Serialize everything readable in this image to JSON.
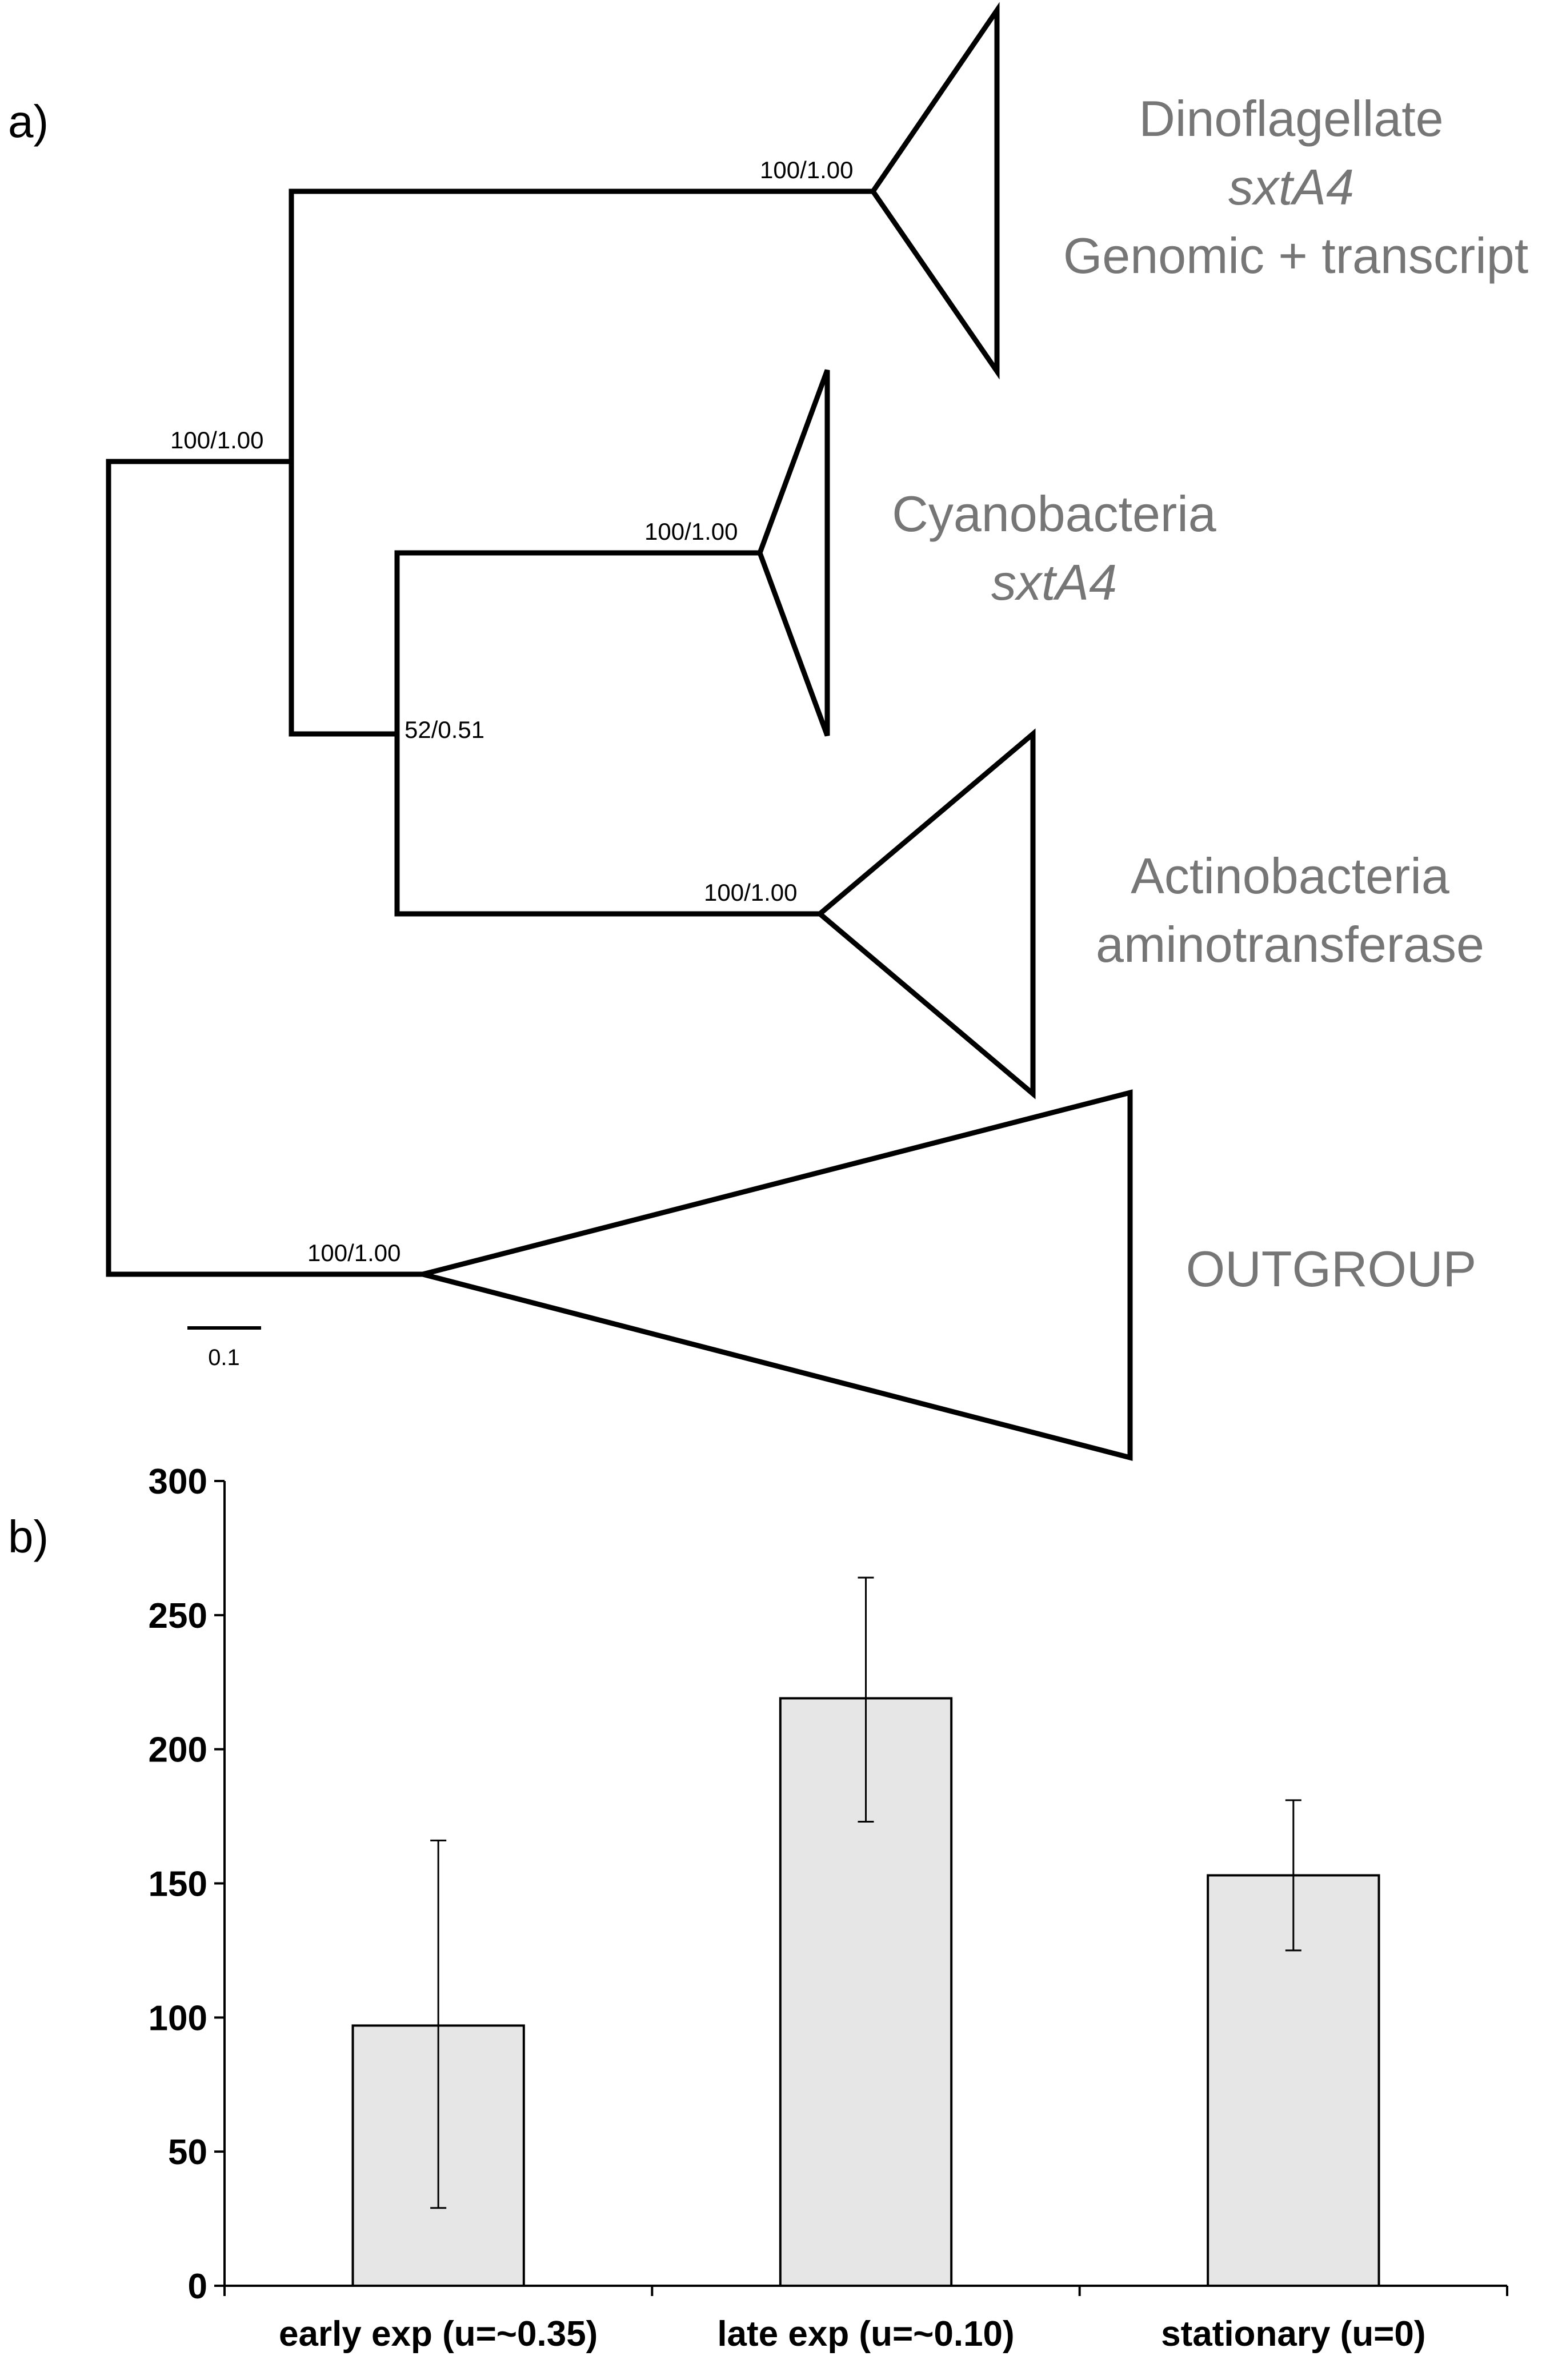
{
  "panel_a": {
    "label": "a)",
    "support_values": {
      "root": "100/1.00",
      "dinoflagellate": "100/1.00",
      "inner_node": "52/0.51",
      "cyanobacteria": "100/1.00",
      "actinobacteria": "100/1.00",
      "outgroup": "100/1.00"
    },
    "clades": {
      "dinoflagellate": {
        "line1": "Dinoflagellate",
        "line2": "sxtA4",
        "line3": "Genomic + transcript"
      },
      "cyanobacteria": {
        "line1": "Cyanobacteria",
        "line2": "sxtA4"
      },
      "actinobacteria": {
        "line1": "Actinobacteria",
        "line2": "aminotransferase"
      },
      "outgroup": {
        "line1": "OUTGROUP"
      }
    },
    "scale_bar": {
      "label": "0.1",
      "length": 0.1
    },
    "colors": {
      "clade_text": "#767676",
      "branch": "#000000"
    }
  },
  "panel_b": {
    "label": "b)",
    "colors": {
      "bar_fill": "#e6e6e6",
      "bar_stroke": "#000000"
    }
  },
  "chart_data": {
    "type": "bar",
    "title": "",
    "xlabel": "",
    "ylabel": "",
    "categories": [
      "early exp (u=~0.35)",
      "late exp (u=~0.10)",
      "stationary (u=0)"
    ],
    "values": [
      97,
      219,
      153
    ],
    "error_low": [
      29,
      173,
      125
    ],
    "error_high": [
      166,
      264,
      181
    ],
    "ylim": [
      0,
      300
    ],
    "yticks": [
      0,
      50,
      100,
      150,
      200,
      250,
      300
    ],
    "ytick_labels": [
      "0",
      "50",
      "100",
      "150",
      "200",
      "250",
      "300"
    ],
    "grid": false,
    "legend": "none"
  }
}
